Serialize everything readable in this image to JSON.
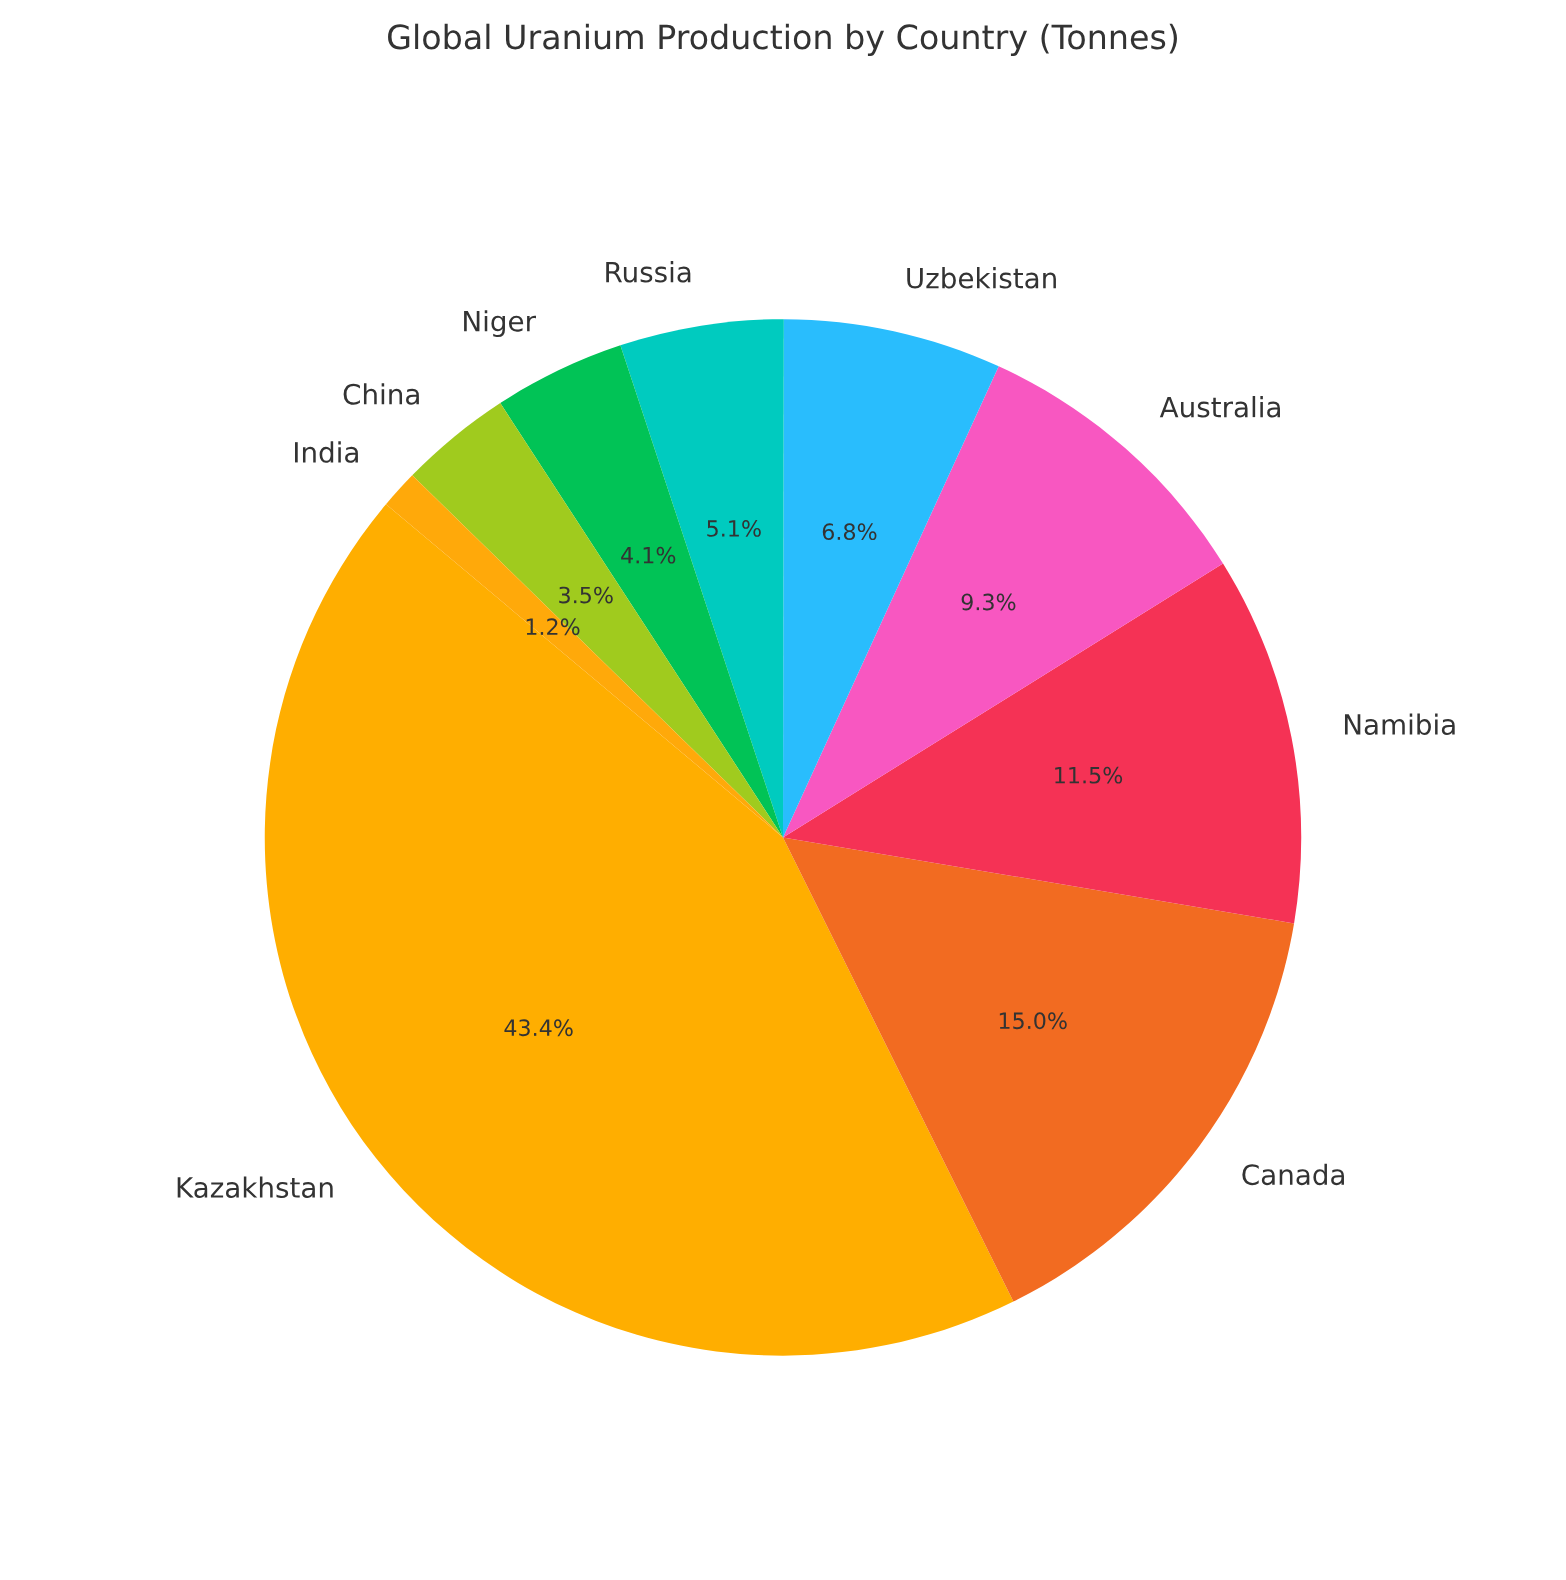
{
  "chart_data": {
    "type": "pie",
    "title": "Global Uranium Production by Country (Tonnes)",
    "categories": [
      "Kazakhstan",
      "Canada",
      "Namibia",
      "Australia",
      "Uzbekistan",
      "Russia",
      "Niger",
      "China",
      "India"
    ],
    "values": [
      43.4,
      15.0,
      11.5,
      9.3,
      6.8,
      5.1,
      4.1,
      3.5,
      1.2
    ],
    "value_labels": [
      "43.4%",
      "15.0%",
      "11.5%",
      "9.3%",
      "6.8%",
      "5.1%",
      "4.1%",
      "3.5%",
      "1.2%"
    ],
    "colors": [
      "#ffae00",
      "#f26b21",
      "#f53255",
      "#f857c1",
      "#29bdfd",
      "#00cbbf",
      "#01c356",
      "#a0cb1e",
      "#ffa90a"
    ],
    "legend": false
  }
}
